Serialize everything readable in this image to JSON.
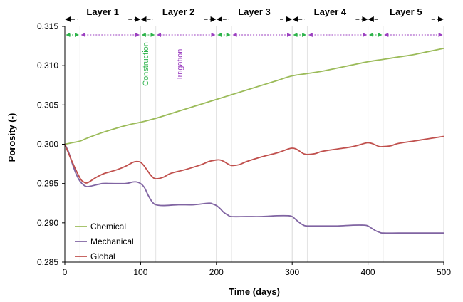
{
  "chart_data": {
    "type": "line",
    "xlabel": "Time (days)",
    "ylabel": "Porosity (-)",
    "xlim": [
      0,
      500
    ],
    "ylim": [
      0.285,
      0.315
    ],
    "x_ticks": [
      "0",
      "100",
      "200",
      "300",
      "400",
      "500"
    ],
    "y_ticks": [
      "0.285",
      "0.290",
      "0.295",
      "0.300",
      "0.305",
      "0.310",
      "0.315"
    ],
    "grid": "vertical",
    "legend_position": "bottom-left",
    "layers": [
      {
        "label": "Layer 1",
        "start": 0,
        "end": 100
      },
      {
        "label": "Layer 2",
        "start": 100,
        "end": 200
      },
      {
        "label": "Layer 3",
        "start": 200,
        "end": 300
      },
      {
        "label": "Layer 4",
        "start": 300,
        "end": 400
      },
      {
        "label": "Layer 5",
        "start": 400,
        "end": 500
      }
    ],
    "phases": [
      {
        "name": "Construction",
        "start": 0,
        "end": 20,
        "color": "#2db34a"
      },
      {
        "name": "Irrigation",
        "start": 20,
        "end": 100,
        "color": "#9b3fc0"
      },
      {
        "name": "Construction",
        "start": 100,
        "end": 120,
        "color": "#2db34a"
      },
      {
        "name": "Irrigation",
        "start": 120,
        "end": 200,
        "color": "#9b3fc0"
      },
      {
        "name": "Construction",
        "start": 200,
        "end": 220,
        "color": "#2db34a"
      },
      {
        "name": "Irrigation",
        "start": 220,
        "end": 300,
        "color": "#9b3fc0"
      },
      {
        "name": "Construction",
        "start": 300,
        "end": 320,
        "color": "#2db34a"
      },
      {
        "name": "Irrigation",
        "start": 320,
        "end": 400,
        "color": "#9b3fc0"
      },
      {
        "name": "Construction",
        "start": 400,
        "end": 420,
        "color": "#2db34a"
      },
      {
        "name": "Irrigation",
        "start": 420,
        "end": 500,
        "color": "#9b3fc0"
      }
    ],
    "annotations": [
      {
        "text": "Construction",
        "x": 110,
        "color": "#2db34a"
      },
      {
        "text": "Irrigation",
        "x": 155,
        "color": "#9b3fc0"
      }
    ],
    "series": [
      {
        "name": "Chemical",
        "color": "#9bbb59",
        "points": [
          [
            0,
            0.3
          ],
          [
            10,
            0.3002
          ],
          [
            20,
            0.3004
          ],
          [
            30,
            0.3008
          ],
          [
            50,
            0.3015
          ],
          [
            70,
            0.3021
          ],
          [
            90,
            0.3026
          ],
          [
            100,
            0.3028
          ],
          [
            120,
            0.3033
          ],
          [
            140,
            0.3039
          ],
          [
            160,
            0.3045
          ],
          [
            180,
            0.3051
          ],
          [
            200,
            0.3057
          ],
          [
            220,
            0.3063
          ],
          [
            240,
            0.3069
          ],
          [
            260,
            0.3075
          ],
          [
            280,
            0.3081
          ],
          [
            300,
            0.3087
          ],
          [
            320,
            0.309
          ],
          [
            340,
            0.3093
          ],
          [
            360,
            0.3097
          ],
          [
            380,
            0.3101
          ],
          [
            400,
            0.3105
          ],
          [
            420,
            0.3108
          ],
          [
            440,
            0.3111
          ],
          [
            460,
            0.3114
          ],
          [
            480,
            0.3118
          ],
          [
            500,
            0.3122
          ]
        ]
      },
      {
        "name": "Mechanical",
        "color": "#8064a2",
        "points": [
          [
            0,
            0.3
          ],
          [
            5,
            0.299
          ],
          [
            10,
            0.2975
          ],
          [
            15,
            0.2962
          ],
          [
            20,
            0.2953
          ],
          [
            25,
            0.2948
          ],
          [
            30,
            0.2946
          ],
          [
            40,
            0.2948
          ],
          [
            50,
            0.295
          ],
          [
            60,
            0.295
          ],
          [
            80,
            0.295
          ],
          [
            90,
            0.2952
          ],
          [
            95,
            0.2952
          ],
          [
            100,
            0.295
          ],
          [
            105,
            0.2945
          ],
          [
            110,
            0.2935
          ],
          [
            115,
            0.2927
          ],
          [
            120,
            0.2923
          ],
          [
            130,
            0.2922
          ],
          [
            150,
            0.2923
          ],
          [
            170,
            0.2923
          ],
          [
            190,
            0.2925
          ],
          [
            195,
            0.2924
          ],
          [
            200,
            0.2922
          ],
          [
            205,
            0.2918
          ],
          [
            210,
            0.2913
          ],
          [
            215,
            0.291
          ],
          [
            220,
            0.2908
          ],
          [
            240,
            0.2908
          ],
          [
            260,
            0.2908
          ],
          [
            280,
            0.2909
          ],
          [
            295,
            0.2909
          ],
          [
            300,
            0.2908
          ],
          [
            305,
            0.2904
          ],
          [
            310,
            0.29
          ],
          [
            315,
            0.2897
          ],
          [
            320,
            0.2896
          ],
          [
            340,
            0.2896
          ],
          [
            360,
            0.2896
          ],
          [
            380,
            0.2897
          ],
          [
            395,
            0.2897
          ],
          [
            400,
            0.2896
          ],
          [
            405,
            0.2893
          ],
          [
            410,
            0.289
          ],
          [
            415,
            0.2888
          ],
          [
            420,
            0.2887
          ],
          [
            440,
            0.2887
          ],
          [
            460,
            0.2887
          ],
          [
            480,
            0.2887
          ],
          [
            500,
            0.2887
          ]
        ]
      },
      {
        "name": "Global",
        "color": "#c0504d",
        "points": [
          [
            0,
            0.3
          ],
          [
            10,
            0.2977
          ],
          [
            20,
            0.2957
          ],
          [
            25,
            0.2952
          ],
          [
            30,
            0.2951
          ],
          [
            40,
            0.2957
          ],
          [
            50,
            0.2962
          ],
          [
            60,
            0.2965
          ],
          [
            70,
            0.2968
          ],
          [
            80,
            0.2972
          ],
          [
            90,
            0.2977
          ],
          [
            95,
            0.2978
          ],
          [
            100,
            0.2977
          ],
          [
            105,
            0.2972
          ],
          [
            110,
            0.2965
          ],
          [
            115,
            0.2959
          ],
          [
            120,
            0.2956
          ],
          [
            130,
            0.2958
          ],
          [
            140,
            0.2963
          ],
          [
            160,
            0.2968
          ],
          [
            180,
            0.2974
          ],
          [
            190,
            0.2978
          ],
          [
            200,
            0.298
          ],
          [
            205,
            0.298
          ],
          [
            210,
            0.2978
          ],
          [
            215,
            0.2975
          ],
          [
            220,
            0.2973
          ],
          [
            230,
            0.2974
          ],
          [
            240,
            0.2978
          ],
          [
            260,
            0.2984
          ],
          [
            280,
            0.2989
          ],
          [
            295,
            0.2994
          ],
          [
            300,
            0.2995
          ],
          [
            305,
            0.2994
          ],
          [
            310,
            0.2991
          ],
          [
            315,
            0.2988
          ],
          [
            320,
            0.2987
          ],
          [
            330,
            0.2988
          ],
          [
            340,
            0.2991
          ],
          [
            360,
            0.2994
          ],
          [
            380,
            0.2997
          ],
          [
            395,
            0.3001
          ],
          [
            400,
            0.3002
          ],
          [
            405,
            0.3001
          ],
          [
            410,
            0.2999
          ],
          [
            415,
            0.2997
          ],
          [
            420,
            0.2997
          ],
          [
            430,
            0.2998
          ],
          [
            440,
            0.3001
          ],
          [
            460,
            0.3004
          ],
          [
            480,
            0.3007
          ],
          [
            500,
            0.301
          ]
        ]
      }
    ]
  }
}
